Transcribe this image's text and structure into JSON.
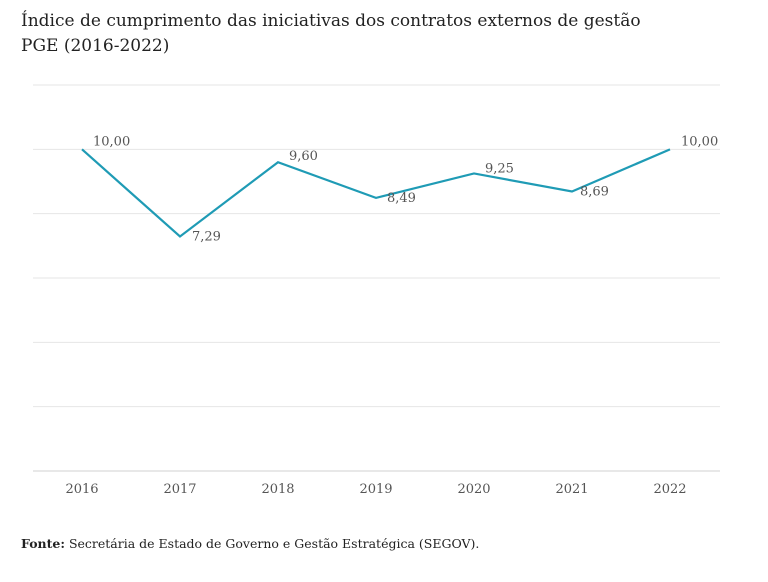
{
  "title_line1": "Índice de cumprimento das iniciativas dos contratos externos de gestão",
  "title_line2": "PGE (2016-2022)",
  "source_label": "Fonte:",
  "source_text": "Secretária de Estado de Governo e Gestão Estratégica (SEGOV).",
  "colors": {
    "line": "#1f9bb5",
    "grid": "#e6e6e6",
    "label": "#555555"
  },
  "chart_data": {
    "type": "line",
    "title": "Índice de cumprimento das iniciativas dos contratos externos de gestão PGE (2016-2022)",
    "x": [
      "2016",
      "2017",
      "2018",
      "2019",
      "2020",
      "2021",
      "2022"
    ],
    "series": [
      {
        "name": "Índice",
        "values": [
          10.0,
          7.29,
          9.6,
          8.49,
          9.25,
          8.69,
          10.0
        ]
      }
    ],
    "data_labels": [
      "10,00",
      "7,29",
      "9,60",
      "8,49",
      "9,25",
      "8,69",
      "10,00"
    ],
    "ylim": [
      0,
      12
    ],
    "gridline_step": 2,
    "y_tick_labels_shown": false,
    "xlabel": "",
    "ylabel": ""
  }
}
